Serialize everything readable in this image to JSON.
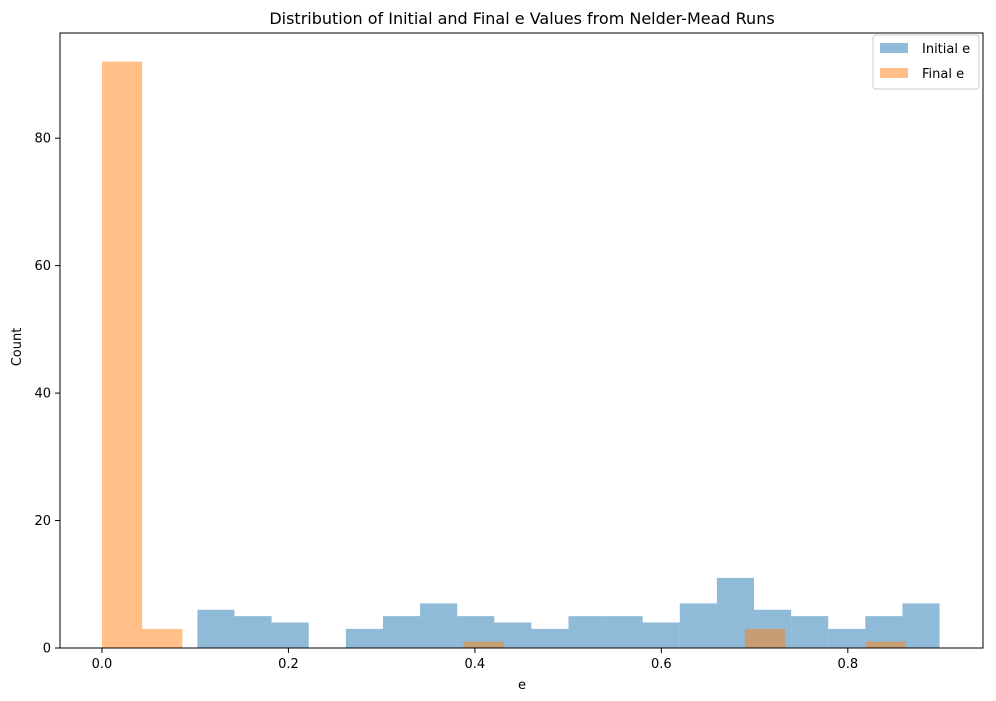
{
  "chart_data": {
    "type": "bar",
    "title": "Distribution of Initial and Final e Values from Nelder-Mead Runs",
    "xlabel": "e",
    "ylabel": "Count",
    "xlim": [
      -0.045,
      0.945
    ],
    "ylim": [
      0,
      96.5
    ],
    "xticks": [
      {
        "value": 0.0,
        "label": "0.0"
      },
      {
        "value": 0.2,
        "label": "0.2"
      },
      {
        "value": 0.4,
        "label": "0.4"
      },
      {
        "value": 0.6,
        "label": "0.6"
      },
      {
        "value": 0.8,
        "label": "0.8"
      }
    ],
    "yticks": [
      {
        "value": 0,
        "label": "0"
      },
      {
        "value": 20,
        "label": "20"
      },
      {
        "value": 40,
        "label": "40"
      },
      {
        "value": 60,
        "label": "60"
      },
      {
        "value": 80,
        "label": "80"
      }
    ],
    "grid": false,
    "legend": "top-right",
    "series": [
      {
        "name": "Initial e",
        "color": "#1f77b4",
        "alpha": 0.5,
        "bin_edges": [
          0.1024,
          0.1422,
          0.182,
          0.2218,
          0.2616,
          0.3014,
          0.3412,
          0.381,
          0.4208,
          0.4606,
          0.5004,
          0.5402,
          0.58,
          0.6198,
          0.6596,
          0.6994,
          0.7392,
          0.779,
          0.8188,
          0.8586,
          0.8984
        ],
        "counts": [
          6,
          5,
          4,
          0,
          3,
          5,
          7,
          5,
          4,
          3,
          5,
          5,
          4,
          7,
          11,
          6,
          5,
          3,
          5,
          7
        ]
      },
      {
        "name": "Final e",
        "color": "#ff7f0e",
        "alpha": 0.5,
        "bin_edges": [
          0.0,
          0.0431,
          0.0862,
          0.1293,
          0.1724,
          0.2155,
          0.2586,
          0.3017,
          0.3448,
          0.3879,
          0.431,
          0.4741,
          0.5172,
          0.5603,
          0.6034,
          0.6465,
          0.6896,
          0.7327,
          0.7758,
          0.8189,
          0.862
        ],
        "counts": [
          92,
          3,
          0,
          0,
          0,
          0,
          0,
          0,
          0,
          1,
          0,
          0,
          0,
          0,
          0,
          0,
          3,
          0,
          0,
          1
        ]
      }
    ]
  }
}
